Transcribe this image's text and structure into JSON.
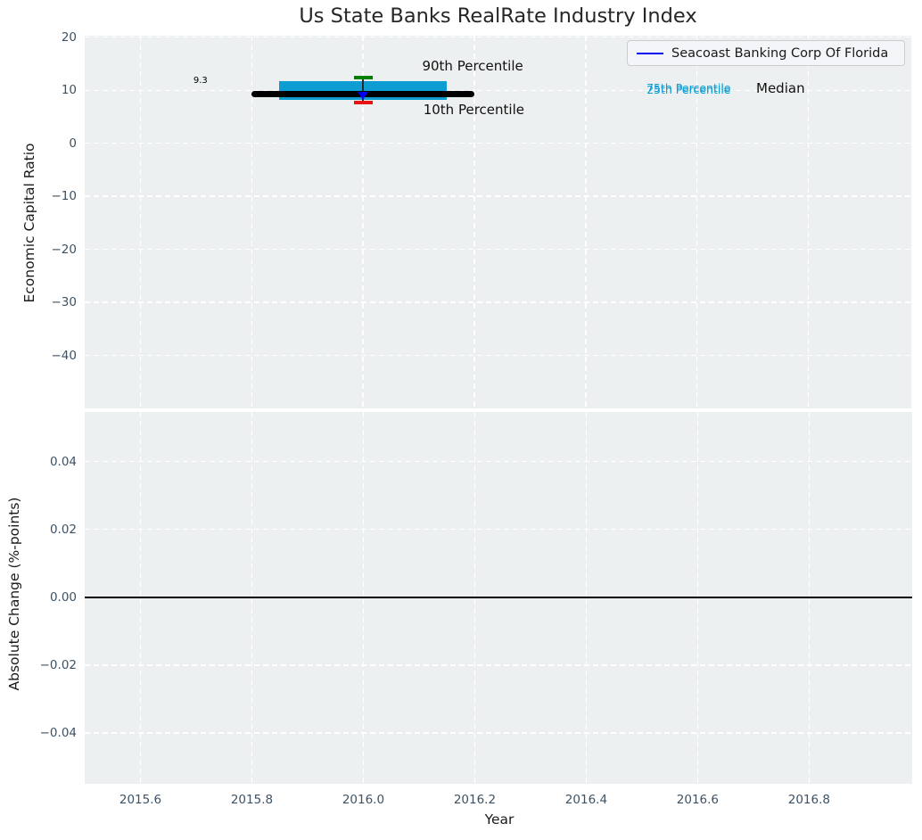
{
  "figure": {
    "title": "Us State Banks RealRate Industry Index",
    "background": "#ffffff",
    "axes_background": "#ecf0f1",
    "grid_color": "#ffffff",
    "tick_label_color": "#3d5265",
    "title_color": "#262626"
  },
  "legend": {
    "label": "Seacoast Banking Corp Of Florida",
    "line_color": "#0000ee",
    "position": "upper right"
  },
  "chart_data": [
    {
      "name": "axes-top",
      "type": "box",
      "ylabel": "Economic Capital Ratio",
      "xlabel": "",
      "xlim": [
        2015.5,
        2016.985
      ],
      "ylim": [
        -50,
        20.3
      ],
      "xticks": [
        2015.6,
        2015.8,
        2016.0,
        2016.2,
        2016.4,
        2016.6,
        2016.8
      ],
      "xtick_labels": [
        "2015.6",
        "2015.8",
        "2016.0",
        "2016.2",
        "2016.4",
        "2016.6",
        "2016.8"
      ],
      "show_xtick_labels": false,
      "yticks": [
        20,
        10,
        0,
        -10,
        -20,
        -30,
        -40
      ],
      "ytick_labels": [
        "20",
        "10",
        "0",
        "−10",
        "−20",
        "−30",
        "−40"
      ],
      "grid": true,
      "series": {
        "company": "Seacoast Banking Corp Of Florida",
        "year": 2016.0,
        "median": 9.3,
        "p25": 8.2,
        "p75": 11.8,
        "p10": 7.7,
        "p90": 12.4,
        "company_value": 8.9,
        "median_line_span": [
          2015.8,
          2016.2
        ],
        "box_span": [
          2015.85,
          2016.15
        ],
        "cap_halfwidth_years": 0.017
      },
      "colors": {
        "median": "#000000",
        "box": "#0d9dd3",
        "p90_cap": "#008000",
        "p10_cap": "#e81212",
        "company_marker": "#0000ee",
        "whisker": "#2a2a2a"
      },
      "annotations": [
        {
          "text": "9.3",
          "x": 2015.708,
          "y": 11.6,
          "color": "#000000",
          "size": 10
        },
        {
          "text": "90th Percentile",
          "x": 2016.197,
          "y": 14.2,
          "color": "#111111",
          "size": 15
        },
        {
          "text": "10th Percentile",
          "x": 2016.199,
          "y": 6.1,
          "color": "#111111",
          "size": 15
        },
        {
          "text": "75th Percentile",
          "x": 2016.585,
          "y": 10.25,
          "color": "#0d9dd3",
          "size": 12.5
        },
        {
          "text": "25th Percentile",
          "x": 2016.585,
          "y": 9.9,
          "color": "#0d9dd3",
          "size": 12.5
        },
        {
          "text": "Median",
          "x": 2016.75,
          "y": 10.05,
          "color": "#111111",
          "size": 15
        }
      ]
    },
    {
      "name": "axes-bottom",
      "type": "line",
      "ylabel": "Absolute Change (%-points)",
      "xlabel": "Year",
      "xlim": [
        2015.5,
        2016.985
      ],
      "ylim": [
        -0.055,
        0.0546
      ],
      "xticks": [
        2015.6,
        2015.8,
        2016.0,
        2016.2,
        2016.4,
        2016.6,
        2016.8
      ],
      "xtick_labels": [
        "2015.6",
        "2015.8",
        "2016.0",
        "2016.2",
        "2016.4",
        "2016.6",
        "2016.8"
      ],
      "show_xtick_labels": true,
      "yticks": [
        0.04,
        0.02,
        0.0,
        -0.02,
        -0.04
      ],
      "ytick_labels": [
        "0.04",
        "0.02",
        "0.00",
        "−0.02",
        "−0.04"
      ],
      "grid": true,
      "zero_line": {
        "y": 0,
        "color": "#000000"
      },
      "series": []
    }
  ]
}
